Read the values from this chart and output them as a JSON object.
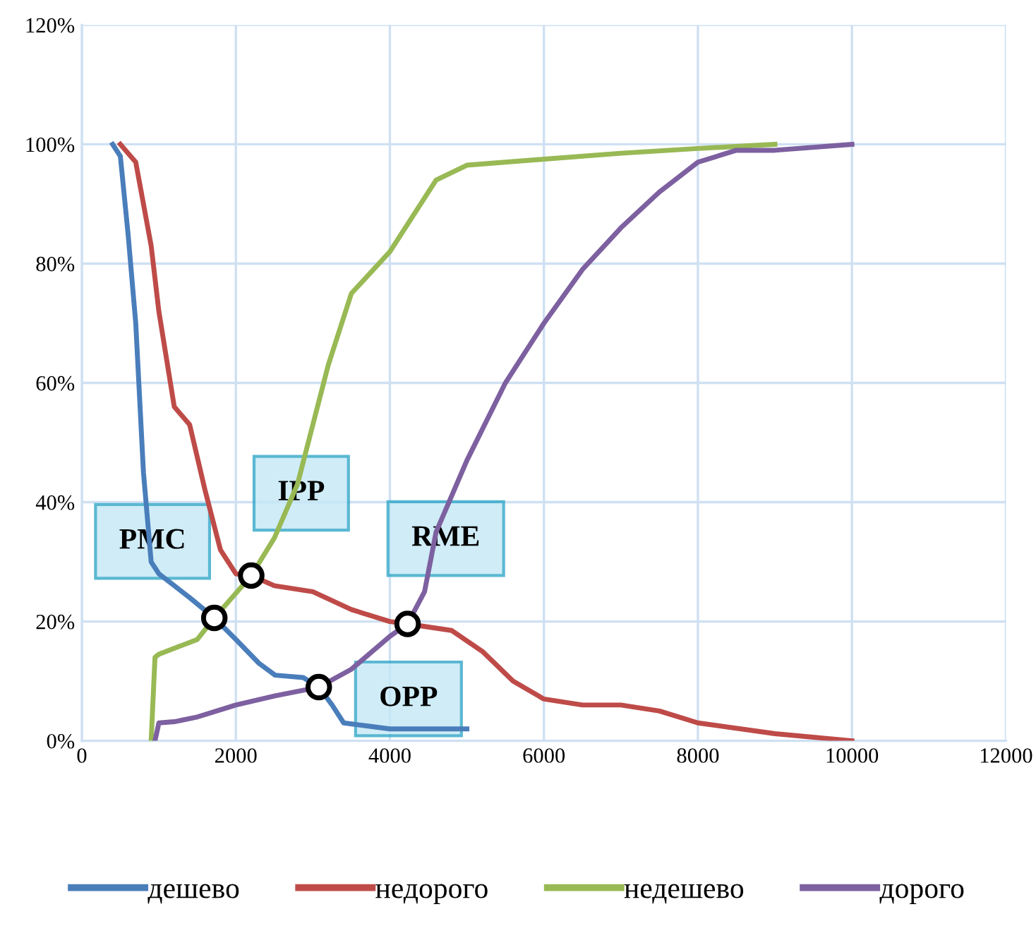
{
  "chart_data": {
    "type": "line",
    "xlim": [
      0,
      12000
    ],
    "xticks": [
      0,
      2000,
      4000,
      6000,
      8000,
      10000,
      12000
    ],
    "ylim": [
      0,
      120
    ],
    "yticks": [
      {
        "value": 0,
        "label": "0%"
      },
      {
        "value": 20,
        "label": "20%"
      },
      {
        "value": 40,
        "label": "40%"
      },
      {
        "value": 60,
        "label": "60%"
      },
      {
        "value": 80,
        "label": "80%"
      },
      {
        "value": 100,
        "label": "100%"
      },
      {
        "value": 120,
        "label": "120%"
      }
    ],
    "grid": true,
    "legend": "bottom",
    "marker": "none",
    "line_style": "solid",
    "series": [
      {
        "name": "дешево",
        "color": "#4a7ebb",
        "x": [
          400,
          500,
          600,
          700,
          800,
          900,
          1000,
          1200,
          1400,
          1720,
          2000,
          2300,
          2510,
          2875,
          3077,
          3250,
          3400,
          3700,
          4000,
          4500,
          5000
        ],
        "values": [
          100,
          98,
          85,
          70,
          45,
          30,
          28,
          26,
          24,
          20.6,
          17,
          13,
          11,
          10.6,
          9,
          6,
          3,
          2.5,
          2,
          2,
          2
        ]
      },
      {
        "name": "недорого",
        "color": "#be4b48",
        "x": [
          500,
          700,
          900,
          1000,
          1200,
          1400,
          1600,
          1800,
          2000,
          2200,
          2500,
          3000,
          3500,
          4000,
          4230,
          4800,
          5200,
          5600,
          6000,
          6500,
          7000,
          7500,
          8000,
          9000,
          10000
        ],
        "values": [
          100,
          97,
          83,
          72,
          56,
          53,
          42,
          32,
          28,
          27.7,
          26,
          25,
          22,
          20,
          19.6,
          18.5,
          15,
          10,
          7,
          6,
          6,
          5,
          3,
          1.2,
          0
        ]
      },
      {
        "name": "недешево",
        "color": "#98b954",
        "x": [
          900,
          950,
          1000,
          1200,
          1500,
          1720,
          2200,
          2500,
          2800,
          3000,
          3200,
          3500,
          4000,
          4300,
          4600,
          5000,
          6000,
          7000,
          8000,
          9000
        ],
        "values": [
          0,
          14,
          14.5,
          15.5,
          17,
          20.6,
          27.7,
          34,
          43,
          53,
          63,
          75,
          82,
          88,
          94,
          96.5,
          97.5,
          98.5,
          99.3,
          100
        ]
      },
      {
        "name": "дорого",
        "color": "#7d60a0",
        "x": [
          950,
          1000,
          1200,
          1500,
          2000,
          2500,
          3077,
          3500,
          4000,
          4230,
          4450,
          4600,
          5000,
          5500,
          6000,
          6500,
          7000,
          7500,
          8000,
          8500,
          9000,
          10000
        ],
        "values": [
          0,
          3,
          3.2,
          4,
          6,
          7.5,
          9,
          12,
          17.5,
          19.6,
          25,
          35,
          47,
          60,
          70,
          79,
          86,
          92,
          97,
          99,
          99,
          100
        ]
      }
    ],
    "annotations": [
      {
        "text": "PMC",
        "x": 1720,
        "y": 20.6
      },
      {
        "text": "IPP",
        "x": 2200,
        "y": 27.7
      },
      {
        "text": "RME",
        "x": 4230,
        "y": 19.6
      },
      {
        "text": "OPP",
        "x": 3077,
        "y": 9
      }
    ]
  }
}
